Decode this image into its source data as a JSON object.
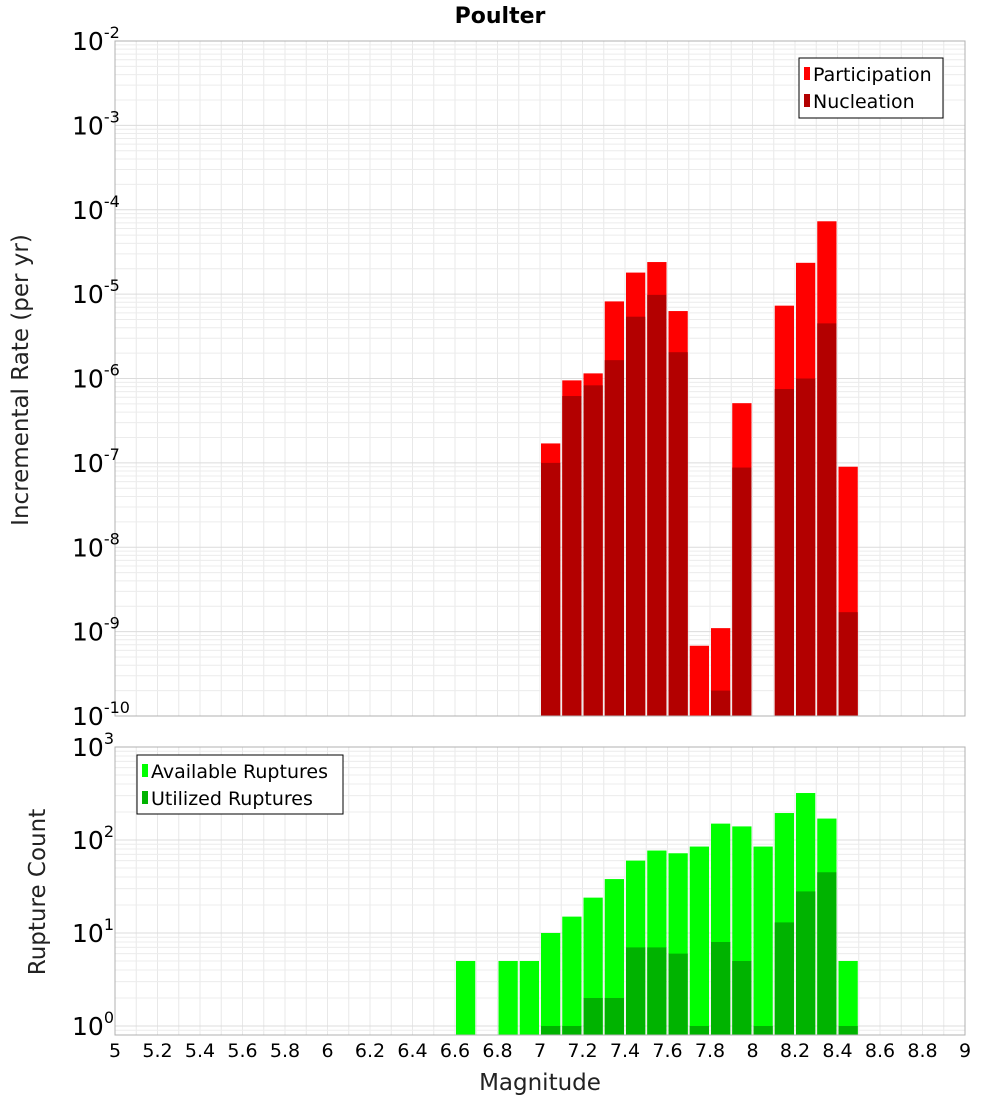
{
  "chart_data": [
    {
      "type": "bar",
      "title": "Poulter",
      "xlabel": "",
      "ylabel": "Incremental Rate (per yr)",
      "yscale": "log",
      "ylim": [
        1e-10,
        0.01
      ],
      "xlim": [
        5,
        9
      ],
      "y_ticks": [
        {
          "base": "10",
          "exp": "-2",
          "value": 0.01
        },
        {
          "base": "10",
          "exp": "-3",
          "value": 0.001
        },
        {
          "base": "10",
          "exp": "-4",
          "value": 0.0001
        },
        {
          "base": "10",
          "exp": "-5",
          "value": 1e-05
        },
        {
          "base": "10",
          "exp": "-6",
          "value": 1e-06
        },
        {
          "base": "10",
          "exp": "-7",
          "value": 1e-07
        },
        {
          "base": "10",
          "exp": "-8",
          "value": 1e-08
        },
        {
          "base": "10",
          "exp": "-9",
          "value": 1e-09
        },
        {
          "base": "10",
          "exp": "-10",
          "value": 1e-10
        }
      ],
      "grid": true,
      "legend_position": "top-right",
      "categories": [
        7.05,
        7.15,
        7.25,
        7.35,
        7.45,
        7.55,
        7.65,
        7.75,
        7.85,
        7.95,
        8.05,
        8.15,
        8.25,
        8.35,
        8.45
      ],
      "series": [
        {
          "name": "Participation",
          "color": "#ff0000",
          "values": [
            1.7e-07,
            9.5e-07,
            1.15e-06,
            8.2e-06,
            1.8e-05,
            2.4e-05,
            6.3e-06,
            6.8e-10,
            1.1e-09,
            5.1e-07,
            null,
            7.3e-06,
            2.35e-05,
            7.3e-05,
            9e-08
          ]
        },
        {
          "name": "Nucleation",
          "color": "#b30000",
          "values": [
            1e-07,
            6.2e-07,
            8.3e-07,
            1.65e-06,
            5.4e-06,
            9.8e-06,
            2.05e-06,
            null,
            2e-10,
            8.8e-08,
            null,
            7.5e-07,
            1e-06,
            4.5e-06,
            1.7e-09
          ]
        }
      ]
    },
    {
      "type": "bar",
      "title": "",
      "xlabel": "Magnitude",
      "ylabel": "Rupture Count",
      "yscale": "log",
      "ylim": [
        0.8,
        1000
      ],
      "xlim": [
        5,
        9
      ],
      "x_ticks": [
        "5",
        "5.2",
        "5.4",
        "5.6",
        "5.8",
        "6",
        "6.2",
        "6.4",
        "6.6",
        "6.8",
        "7",
        "7.2",
        "7.4",
        "7.6",
        "7.8",
        "8",
        "8.2",
        "8.4",
        "8.6",
        "8.8",
        "9"
      ],
      "y_ticks": [
        {
          "base": "10",
          "exp": "3",
          "value": 1000
        },
        {
          "base": "10",
          "exp": "2",
          "value": 100
        },
        {
          "base": "10",
          "exp": "1",
          "value": 10
        },
        {
          "base": "10",
          "exp": "0",
          "value": 1
        }
      ],
      "grid": true,
      "legend_position": "top-left",
      "categories": [
        6.65,
        6.75,
        6.85,
        6.95,
        7.05,
        7.15,
        7.25,
        7.35,
        7.45,
        7.55,
        7.65,
        7.75,
        7.85,
        7.95,
        8.05,
        8.15,
        8.25,
        8.35,
        8.45
      ],
      "series": [
        {
          "name": "Available Ruptures",
          "color": "#00ff00",
          "values": [
            5,
            null,
            5,
            5,
            10,
            15,
            24,
            38,
            60,
            77,
            72,
            85,
            150,
            140,
            85,
            195,
            320,
            170,
            5
          ]
        },
        {
          "name": "Utilized Ruptures",
          "color": "#00b300",
          "values": [
            null,
            null,
            null,
            null,
            1,
            1,
            2,
            2,
            7,
            7,
            6,
            1,
            8,
            5,
            1,
            13,
            28,
            45,
            1
          ]
        }
      ]
    }
  ]
}
